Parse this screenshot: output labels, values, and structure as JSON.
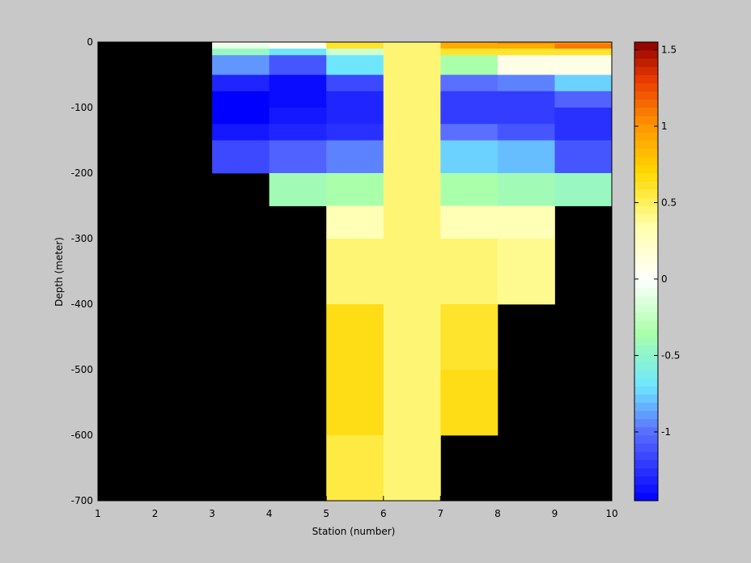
{
  "chart_data": {
    "type": "heatmap",
    "title": "",
    "xlabel": "Station (number)",
    "ylabel": "Depth (meter)",
    "xlim": [
      1,
      10
    ],
    "ylim": [
      -700,
      0
    ],
    "x_ticks": [
      1,
      2,
      3,
      4,
      5,
      6,
      7,
      8,
      9,
      10
    ],
    "y_ticks": [
      0,
      -100,
      -200,
      -300,
      -400,
      -500,
      -600,
      -700
    ],
    "colorbar": {
      "range": [
        -1.45,
        1.55
      ],
      "ticks": [
        1.5,
        1,
        0.5,
        0,
        -0.5,
        -1
      ],
      "colormap": "jet-white-centered",
      "missing_color": "#000000"
    },
    "depth_edges": [
      0,
      -3,
      -10,
      -20,
      -30,
      -50,
      -75,
      -100,
      -125,
      -150,
      -200,
      -250,
      -300,
      -400,
      -500,
      -600,
      -700
    ],
    "stations": [
      3,
      4,
      5,
      6,
      7,
      8,
      9
    ],
    "values": [
      [
        0.05,
        0.1,
        0.6,
        0.45,
        0.9,
        1.0,
        1.0
      ],
      [
        -0.1,
        0.05,
        0.6,
        0.45,
        0.9,
        0.9,
        1.1
      ],
      [
        -0.45,
        -0.7,
        -0.2,
        0.45,
        0.6,
        0.6,
        0.6
      ],
      [
        -0.9,
        -1.1,
        -0.7,
        0.45,
        -0.35,
        0.1,
        0.1
      ],
      [
        -0.9,
        -1.1,
        -0.7,
        0.45,
        -0.35,
        0.1,
        0.1
      ],
      [
        -1.3,
        -1.4,
        -1.15,
        0.45,
        -1.0,
        -0.95,
        -0.75
      ],
      [
        -1.45,
        -1.4,
        -1.3,
        0.45,
        -1.2,
        -1.2,
        -1.05
      ],
      [
        -1.45,
        -1.35,
        -1.3,
        0.45,
        -1.2,
        -1.2,
        -1.25
      ],
      [
        -1.35,
        -1.3,
        -1.25,
        0.45,
        -1.0,
        -1.1,
        -1.25
      ],
      [
        -1.15,
        -1.05,
        -0.95,
        0.45,
        -0.75,
        -0.8,
        -1.1
      ],
      [
        null,
        -0.4,
        -0.35,
        0.45,
        -0.35,
        -0.4,
        -0.45
      ],
      [
        null,
        null,
        0.3,
        0.45,
        0.3,
        0.3,
        null
      ],
      [
        null,
        null,
        0.45,
        0.45,
        0.45,
        0.4,
        null
      ],
      [
        null,
        null,
        0.65,
        0.45,
        0.6,
        null,
        null
      ],
      [
        null,
        null,
        0.65,
        0.45,
        0.65,
        null,
        null
      ],
      [
        null,
        null,
        0.55,
        0.45,
        null,
        null,
        null
      ]
    ]
  }
}
